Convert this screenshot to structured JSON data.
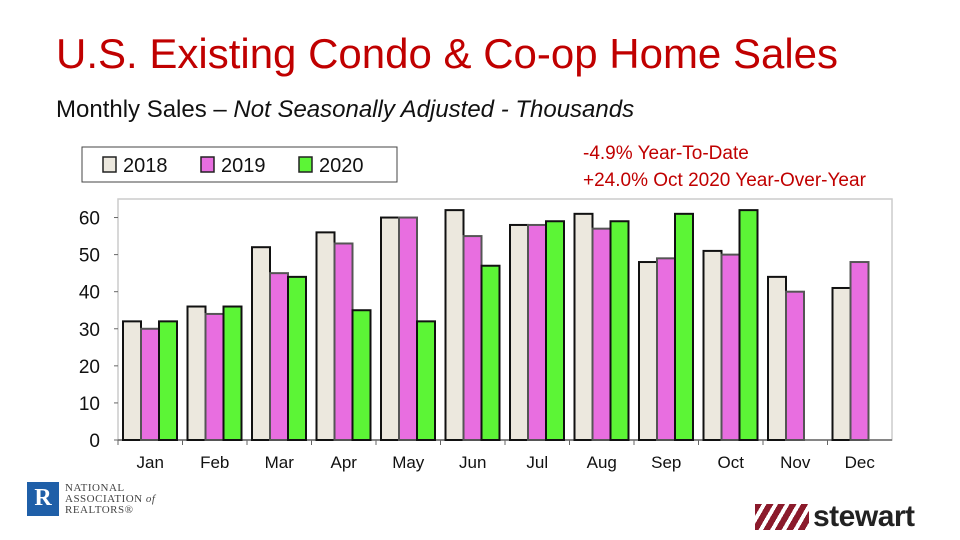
{
  "title": "U.S. Existing Condo & Co-op Home Sales",
  "subtitle": {
    "main": "Monthly Sales – ",
    "italic": "Not Seasonally Adjusted - Thousands"
  },
  "notes": [
    "-4.9% Year-To-Date",
    "+24.0% Oct 2020 Year-Over-Year"
  ],
  "logos": {
    "nar": "NATIONAL ASSOCIATION of REALTORS®",
    "stewart": "stewart"
  },
  "chart_data": {
    "type": "bar",
    "categories": [
      "Jan",
      "Feb",
      "Mar",
      "Apr",
      "May",
      "Jun",
      "Jul",
      "Aug",
      "Sep",
      "Oct",
      "Nov",
      "Dec"
    ],
    "series": [
      {
        "name": "2018",
        "color": "#ece8de",
        "values": [
          32,
          36,
          52,
          56,
          60,
          62,
          58,
          61,
          48,
          51,
          44,
          41
        ]
      },
      {
        "name": "2019",
        "color": "#e86ee0",
        "values": [
          30,
          34,
          45,
          53,
          60,
          55,
          58,
          57,
          49,
          50,
          40,
          48
        ]
      },
      {
        "name": "2020",
        "color": "#5cf536",
        "values": [
          32,
          36,
          44,
          35,
          32,
          47,
          59,
          59,
          61,
          62,
          null,
          null
        ]
      }
    ],
    "yticks": [
      0,
      10,
      20,
      30,
      40,
      50,
      60
    ],
    "ylim": [
      0,
      65
    ],
    "legend": "top-left",
    "grid": false
  }
}
